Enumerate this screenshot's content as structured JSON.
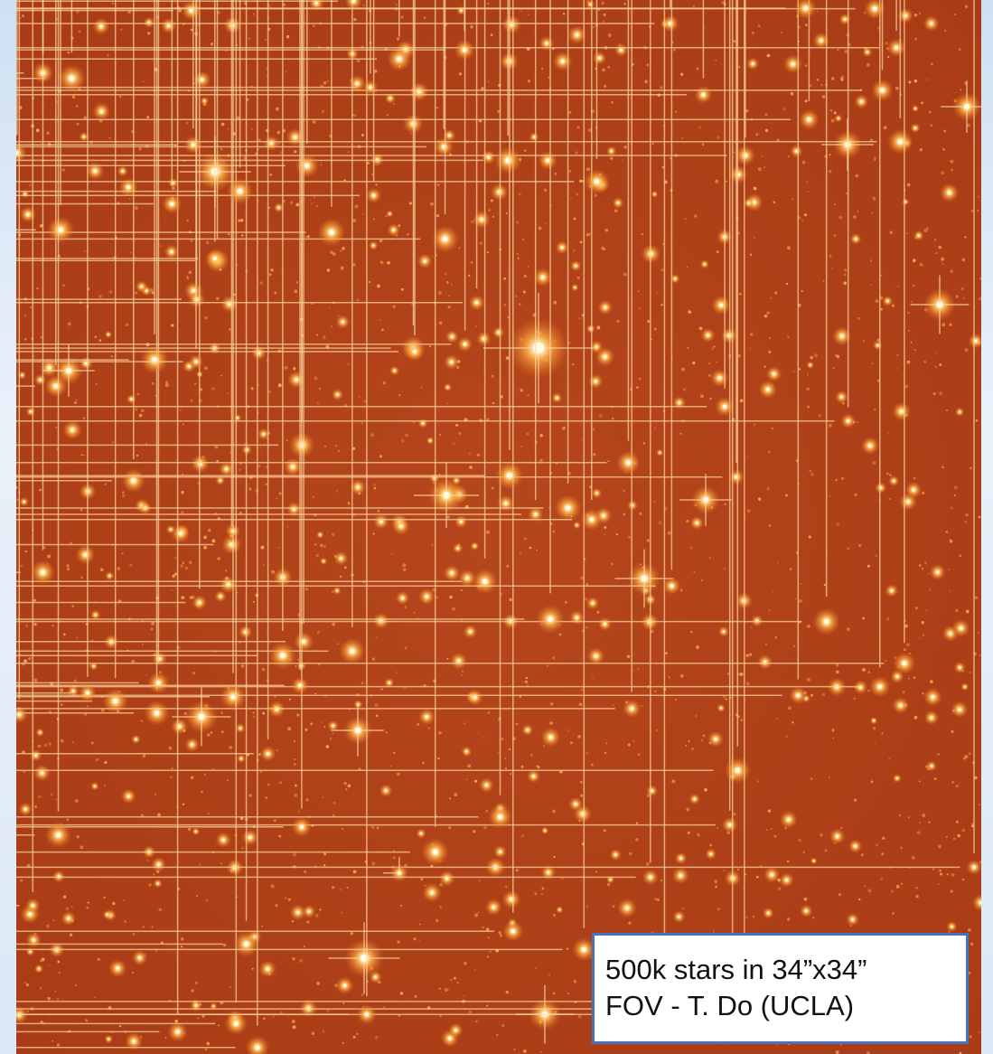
{
  "caption": {
    "lines": [
      "500k stars in 34”x34”",
      "FOV - T. Do (UCLA)"
    ]
  }
}
